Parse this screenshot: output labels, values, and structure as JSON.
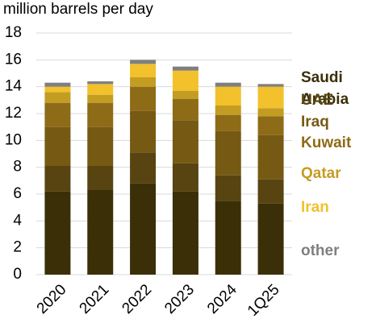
{
  "chart_data": {
    "type": "stacked-bar",
    "title": "million barrels per day",
    "categories": [
      "2020",
      "2021",
      "2022",
      "2023",
      "2024",
      "1Q25"
    ],
    "series": [
      {
        "name": "Saudi Arabia",
        "color": "#3b2f07",
        "values": [
          6.2,
          6.3,
          6.8,
          6.2,
          5.5,
          5.3
        ]
      },
      {
        "name": "UAE",
        "color": "#584410",
        "values": [
          1.9,
          1.8,
          2.3,
          2.1,
          1.9,
          1.8
        ]
      },
      {
        "name": "Iraq",
        "color": "#765a13",
        "values": [
          2.9,
          2.9,
          3.1,
          3.2,
          3.3,
          3.3
        ]
      },
      {
        "name": "Kuwait",
        "color": "#8e6b16",
        "values": [
          1.8,
          1.8,
          1.8,
          1.6,
          1.2,
          1.4
        ]
      },
      {
        "name": "Qatar",
        "color": "#c39c22",
        "values": [
          0.8,
          0.6,
          0.7,
          0.6,
          0.7,
          0.6
        ]
      },
      {
        "name": "Iran",
        "color": "#f2c12b",
        "values": [
          0.4,
          0.8,
          1.0,
          1.5,
          1.4,
          1.6
        ]
      },
      {
        "name": "other",
        "color": "#7f7f7f",
        "values": [
          0.3,
          0.2,
          0.3,
          0.3,
          0.3,
          0.2
        ]
      }
    ],
    "ylim": [
      0,
      18
    ],
    "yticks": [
      0,
      2,
      4,
      6,
      8,
      10,
      12,
      14,
      16,
      18
    ],
    "grid": true
  }
}
